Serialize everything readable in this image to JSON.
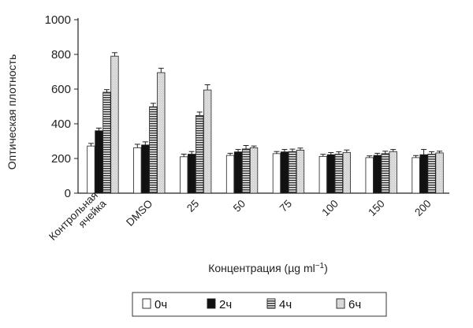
{
  "chart_data": {
    "type": "bar",
    "ylabel": "Оптическая плотность",
    "xlabel_main": "Концентрация (",
    "xlabel_unit": "µg ml",
    "xlabel_sup": "−1",
    "xlabel_close": ")",
    "ylim": [
      0,
      1000
    ],
    "yticks": [
      "0",
      "200",
      "400",
      "600",
      "800",
      "1000"
    ],
    "categories": [
      [
        "Контрольная",
        "ячейка"
      ],
      [
        "DMSO"
      ],
      [
        "25"
      ],
      [
        "50"
      ],
      [
        "75"
      ],
      [
        "100"
      ],
      [
        "150"
      ],
      [
        "200"
      ]
    ],
    "series": [
      {
        "name": "0ч",
        "pattern": "white",
        "values": [
          272,
          262,
          210,
          218,
          228,
          212,
          205,
          205
        ],
        "errors": [
          15,
          20,
          15,
          12,
          12,
          12,
          10,
          12
        ]
      },
      {
        "name": "2ч",
        "pattern": "black",
        "values": [
          360,
          278,
          225,
          238,
          238,
          222,
          218,
          222
        ],
        "errors": [
          15,
          18,
          15,
          14,
          14,
          12,
          12,
          30
        ]
      },
      {
        "name": "4ч",
        "pattern": "horizontal-lines",
        "values": [
          582,
          498,
          448,
          255,
          240,
          225,
          228,
          225
        ],
        "errors": [
          15,
          20,
          20,
          20,
          14,
          14,
          14,
          14
        ]
      },
      {
        "name": "6ч",
        "pattern": "light-gray",
        "values": [
          790,
          695,
          595,
          262,
          248,
          235,
          240,
          232
        ],
        "errors": [
          20,
          25,
          30,
          10,
          12,
          14,
          12,
          10
        ]
      }
    ],
    "grid": false,
    "legend_position": "bottom-right"
  }
}
